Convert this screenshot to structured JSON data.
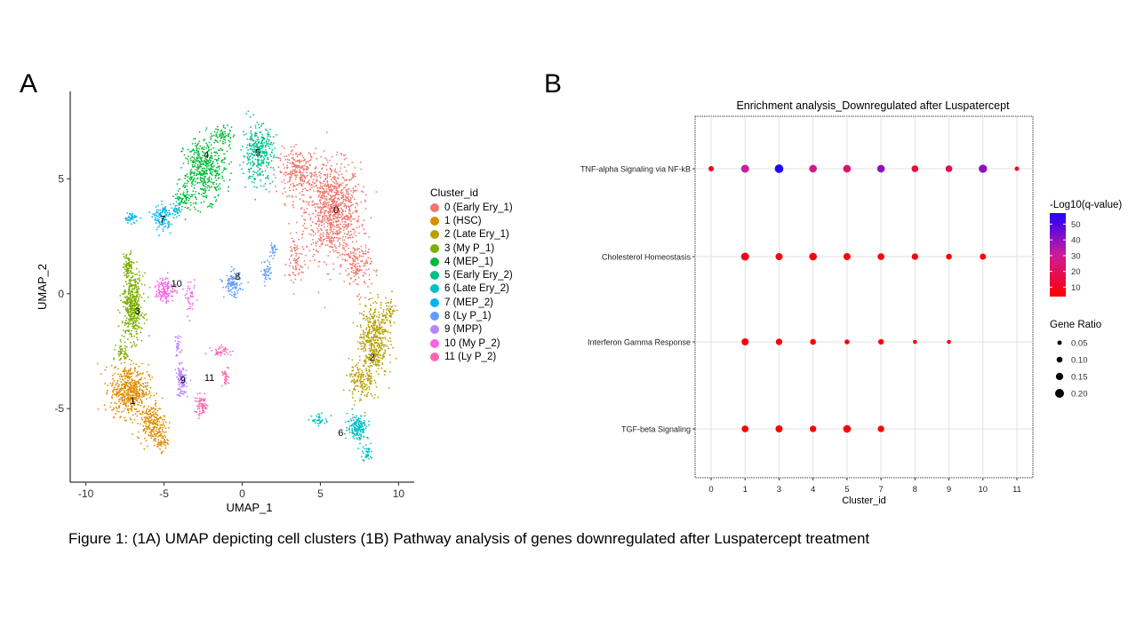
{
  "panel_labels": {
    "a": "A",
    "b": "B"
  },
  "caption": "Figure 1: (1A) UMAP depicting cell clusters (1B) Pathway analysis of genes downregulated after Luspatercept treatment",
  "chart_data": [
    {
      "type": "scatter",
      "xlabel": "UMAP_1",
      "ylabel": "UMAP_2",
      "xlim": [
        -11,
        11
      ],
      "ylim": [
        -8.2,
        8.8
      ],
      "xticks": [
        -10,
        -5,
        0,
        5,
        10
      ],
      "yticks": [
        -5,
        0,
        5
      ],
      "grid": false,
      "legend": {
        "title": "Cluster_id",
        "position": "right"
      },
      "clusters": [
        {
          "id": "0",
          "name": "0 (Early Ery_1)",
          "color": "#F0766D",
          "label_pos": [
            6.0,
            3.5
          ]
        },
        {
          "id": "1",
          "name": "1 (HSC)",
          "color": "#DE8C00",
          "label_pos": [
            -7.0,
            -4.8
          ]
        },
        {
          "id": "2",
          "name": "2 (Late Ery_1)",
          "color": "#B7A000",
          "label_pos": [
            8.3,
            -2.9
          ]
        },
        {
          "id": "3",
          "name": "3 (My P_1)",
          "color": "#7CAE00",
          "label_pos": [
            -6.7,
            -0.9
          ]
        },
        {
          "id": "4",
          "name": "4 (MEP_1)",
          "color": "#00BA38",
          "label_pos": [
            -2.3,
            5.9
          ]
        },
        {
          "id": "5",
          "name": "5 (Early Ery_2)",
          "color": "#00C08B",
          "label_pos": [
            1.0,
            6.0
          ]
        },
        {
          "id": "6",
          "name": "6 (Late Ery_2)",
          "color": "#00BFC4",
          "label_pos": [
            6.3,
            -6.2
          ]
        },
        {
          "id": "7",
          "name": "7 (MEP_2)",
          "color": "#00B4F0",
          "label_pos": [
            -5.1,
            3.1
          ]
        },
        {
          "id": "8",
          "name": "8 (Ly P_1)",
          "color": "#619CFF",
          "label_pos": [
            -0.3,
            0.6
          ]
        },
        {
          "id": "9",
          "name": "9 (MPP)",
          "color": "#B983FF",
          "label_pos": [
            -3.8,
            -3.9
          ]
        },
        {
          "id": "10",
          "name": "10 (My P_2)",
          "color": "#F564E3",
          "label_pos": [
            -4.2,
            0.3
          ]
        },
        {
          "id": "11",
          "name": "11 (Ly P_2)",
          "color": "#FF64B0",
          "label_pos": [
            -2.1,
            -3.8
          ]
        }
      ]
    },
    {
      "type": "scatter",
      "title": "Enrichment analysis_Downregulated after Luspatercept",
      "xlabel": "Cluster_id",
      "ylabel": "",
      "categories": [
        "0",
        "1",
        "3",
        "4",
        "5",
        "7",
        "8",
        "9",
        "10",
        "11"
      ],
      "pathways": [
        "TNF-alpha Signaling via NF-kB",
        "Cholesterol Homeostasis",
        "Interferon Gamma Response",
        "TGF-beta Signaling"
      ],
      "grid": true,
      "color_legend": {
        "title": "-Log10(q-value)",
        "ticks": [
          "50",
          "40",
          "30",
          "20",
          "10"
        ],
        "tick_values": [
          50,
          40,
          30,
          20,
          10
        ],
        "range": [
          4,
          57
        ]
      },
      "size_legend": {
        "title": "Gene Ratio",
        "ticks": [
          "0.05",
          "0.10",
          "0.15",
          "0.20"
        ],
        "tick_values": [
          0.05,
          0.1,
          0.15,
          0.2
        ]
      },
      "points": [
        {
          "pathway": "TNF-alpha Signaling via NF-kB",
          "cluster": "0",
          "gene_ratio": 0.08,
          "neg_log10_q": 8
        },
        {
          "pathway": "TNF-alpha Signaling via NF-kB",
          "cluster": "1",
          "gene_ratio": 0.17,
          "neg_log10_q": 30
        },
        {
          "pathway": "TNF-alpha Signaling via NF-kB",
          "cluster": "3",
          "gene_ratio": 0.19,
          "neg_log10_q": 57
        },
        {
          "pathway": "TNF-alpha Signaling via NF-kB",
          "cluster": "4",
          "gene_ratio": 0.16,
          "neg_log10_q": 28
        },
        {
          "pathway": "TNF-alpha Signaling via NF-kB",
          "cluster": "5",
          "gene_ratio": 0.16,
          "neg_log10_q": 22
        },
        {
          "pathway": "TNF-alpha Signaling via NF-kB",
          "cluster": "7",
          "gene_ratio": 0.16,
          "neg_log10_q": 40
        },
        {
          "pathway": "TNF-alpha Signaling via NF-kB",
          "cluster": "8",
          "gene_ratio": 0.13,
          "neg_log10_q": 14
        },
        {
          "pathway": "TNF-alpha Signaling via NF-kB",
          "cluster": "9",
          "gene_ratio": 0.13,
          "neg_log10_q": 18
        },
        {
          "pathway": "TNF-alpha Signaling via NF-kB",
          "cluster": "10",
          "gene_ratio": 0.18,
          "neg_log10_q": 40
        },
        {
          "pathway": "TNF-alpha Signaling via NF-kB",
          "cluster": "11",
          "gene_ratio": 0.05,
          "neg_log10_q": 8
        },
        {
          "pathway": "Cholesterol Homeostasis",
          "cluster": "1",
          "gene_ratio": 0.17,
          "neg_log10_q": 8
        },
        {
          "pathway": "Cholesterol Homeostasis",
          "cluster": "3",
          "gene_ratio": 0.14,
          "neg_log10_q": 7
        },
        {
          "pathway": "Cholesterol Homeostasis",
          "cluster": "4",
          "gene_ratio": 0.16,
          "neg_log10_q": 7
        },
        {
          "pathway": "Cholesterol Homeostasis",
          "cluster": "5",
          "gene_ratio": 0.14,
          "neg_log10_q": 6
        },
        {
          "pathway": "Cholesterol Homeostasis",
          "cluster": "7",
          "gene_ratio": 0.13,
          "neg_log10_q": 6
        },
        {
          "pathway": "Cholesterol Homeostasis",
          "cluster": "8",
          "gene_ratio": 0.12,
          "neg_log10_q": 6
        },
        {
          "pathway": "Cholesterol Homeostasis",
          "cluster": "9",
          "gene_ratio": 0.1,
          "neg_log10_q": 5
        },
        {
          "pathway": "Cholesterol Homeostasis",
          "cluster": "10",
          "gene_ratio": 0.11,
          "neg_log10_q": 6
        },
        {
          "pathway": "Interferon Gamma Response",
          "cluster": "1",
          "gene_ratio": 0.14,
          "neg_log10_q": 6
        },
        {
          "pathway": "Interferon Gamma Response",
          "cluster": "3",
          "gene_ratio": 0.12,
          "neg_log10_q": 5
        },
        {
          "pathway": "Interferon Gamma Response",
          "cluster": "4",
          "gene_ratio": 0.1,
          "neg_log10_q": 5
        },
        {
          "pathway": "Interferon Gamma Response",
          "cluster": "5",
          "gene_ratio": 0.07,
          "neg_log10_q": 4
        },
        {
          "pathway": "Interferon Gamma Response",
          "cluster": "7",
          "gene_ratio": 0.09,
          "neg_log10_q": 5
        },
        {
          "pathway": "Interferon Gamma Response",
          "cluster": "8",
          "gene_ratio": 0.04,
          "neg_log10_q": 4
        },
        {
          "pathway": "Interferon Gamma Response",
          "cluster": "9",
          "gene_ratio": 0.04,
          "neg_log10_q": 4
        },
        {
          "pathway": "TGF-beta Signaling",
          "cluster": "1",
          "gene_ratio": 0.13,
          "neg_log10_q": 5
        },
        {
          "pathway": "TGF-beta Signaling",
          "cluster": "3",
          "gene_ratio": 0.14,
          "neg_log10_q": 5
        },
        {
          "pathway": "TGF-beta Signaling",
          "cluster": "4",
          "gene_ratio": 0.12,
          "neg_log10_q": 5
        },
        {
          "pathway": "TGF-beta Signaling",
          "cluster": "5",
          "gene_ratio": 0.16,
          "neg_log10_q": 6
        },
        {
          "pathway": "TGF-beta Signaling",
          "cluster": "7",
          "gene_ratio": 0.12,
          "neg_log10_q": 5
        }
      ]
    }
  ]
}
